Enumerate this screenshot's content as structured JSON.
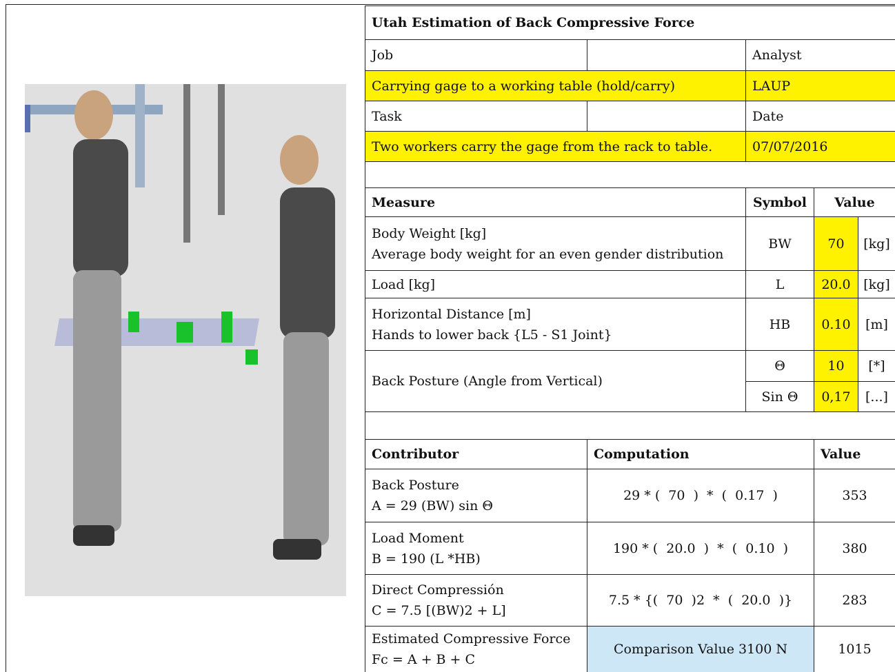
{
  "title": "Utah Estimation of Back Compressive Force",
  "header": {
    "job_label": "Job",
    "analyst_label": "Analyst",
    "job": "Carrying gage to a working table (hold/carry)",
    "analyst": "LAUP",
    "task_label": "Task",
    "date_label": "Date",
    "task": "Two workers carry the gage from the rack to table.",
    "date": "07/07/2016"
  },
  "measures": {
    "columns": [
      "Measure",
      "Symbol",
      "Value"
    ],
    "rows": [
      {
        "name": "Body Weight [kg]",
        "note": "Average body weight for an even gender distribution",
        "symbol": "BW",
        "value": 70,
        "unit": "[kg]"
      },
      {
        "name": "Load [kg]",
        "symbol": "L",
        "value": "20.0",
        "unit": "[kg]"
      },
      {
        "name": "Horizontal Distance [m]",
        "note": "Hands to lower back {L5 - S1 Joint}",
        "symbol": "HB",
        "value": "0.10",
        "unit": "[m]"
      }
    ],
    "posture": {
      "name": "Back Posture (Angle from Vertical)",
      "angle": {
        "symbol": "Θ",
        "value": 10,
        "unit": "[*]"
      },
      "sine": {
        "symbol": "Sin Θ",
        "value": "0,17",
        "unit": "[...]"
      }
    }
  },
  "contributors": {
    "columns": [
      "Contributor",
      "Computation",
      "Value"
    ],
    "rows": [
      {
        "name": "Back Posture",
        "formula": "A = 29 (BW) sin Θ",
        "computation": "29 * (  70  )  *  (  0.17  )",
        "value": 353
      },
      {
        "name": "Load Moment",
        "formula": "B = 190 (L *HB)",
        "computation": "190 * (  20.0  )  *  (  0.10  )",
        "value": 380
      },
      {
        "name": "Direct Compressión",
        "formula": "C = 7.5 [(BW)2 + L]",
        "computation": "7.5 * {(  70  )2  *  (  20.0  )}",
        "value": 283
      },
      {
        "name": "Estimated Compressive Force",
        "formula": "Fc = A + B + C",
        "computation": "Comparison Value 3100 N",
        "value": 1015
      }
    ]
  }
}
